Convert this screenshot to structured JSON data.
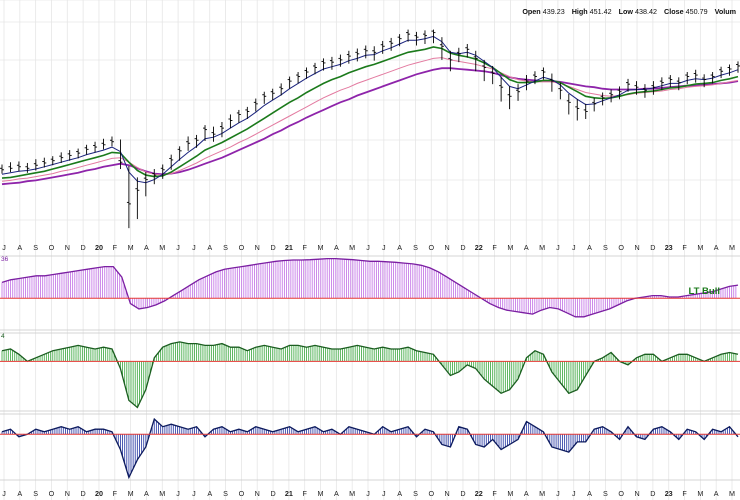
{
  "ohlc": {
    "open_label": "Open",
    "open_value": "439.23",
    "high_label": "High",
    "high_value": "451.42",
    "low_label": "Low",
    "low_value": "438.42",
    "close_label": "Close",
    "close_value": "450.79",
    "volume_label": "Volum"
  },
  "colors": {
    "price": "#000000",
    "ma_fast": "#1a237e",
    "ma_green": "#1b7a1b",
    "ma_pink": "#e37aa0",
    "ma_purple": "#8e24aa",
    "hist_purple_fill": "#c77de8",
    "hist_purple_line": "#7b1fa2",
    "hist_green_fill": "#4caf50",
    "hist_green_line": "#1b5e20",
    "hist_blue_fill": "#3949ab",
    "hist_blue_line": "#0d1b5e",
    "zero_line": "#e53935",
    "grid": "#e6e6e6",
    "label_green": "#1b7a1b"
  },
  "chart_data": {
    "type": "line",
    "x_tick_labels": [
      "J",
      "A",
      "S",
      "O",
      "N",
      "D",
      "20",
      "F",
      "M",
      "A",
      "M",
      "J",
      "J",
      "A",
      "S",
      "O",
      "N",
      "D",
      "21",
      "F",
      "M",
      "A",
      "M",
      "J",
      "J",
      "A",
      "S",
      "O",
      "N",
      "D",
      "22",
      "F",
      "M",
      "A",
      "M",
      "J",
      "J",
      "A",
      "S",
      "O",
      "N",
      "D",
      "23",
      "F",
      "M",
      "A",
      "M"
    ],
    "bold_tick_labels": [
      "20",
      "21",
      "22",
      "23"
    ],
    "price_series": [
      295,
      297,
      299,
      297,
      301,
      304,
      307,
      311,
      314,
      317,
      322,
      325,
      328,
      332,
      305,
      250,
      268,
      282,
      288,
      295,
      308,
      320,
      330,
      334,
      348,
      342,
      350,
      360,
      368,
      372,
      382,
      392,
      396,
      402,
      412,
      418,
      424,
      430,
      436,
      437,
      440,
      445,
      448,
      452,
      450,
      458,
      462,
      468,
      474,
      470,
      472,
      476,
      458,
      440,
      448,
      454,
      442,
      430,
      422,
      404,
      392,
      398,
      412,
      418,
      424,
      412,
      400,
      384,
      376,
      372,
      382,
      390,
      394,
      398,
      408,
      404,
      400,
      404,
      410,
      414,
      410,
      418,
      420,
      414,
      418,
      425,
      428,
      432
    ],
    "ma_series": [
      {
        "name": "",
        "role": "fast",
        "values": [
          289,
          291,
          293,
          294,
          296,
          299,
          302,
          305,
          308,
          311,
          315,
          318,
          321,
          325,
          319,
          292,
          280,
          278,
          282,
          289,
          299,
          309,
          318,
          326,
          336,
          338,
          343,
          350,
          357,
          363,
          371,
          380,
          387,
          394,
          402,
          409,
          416,
          422,
          428,
          431,
          434,
          439,
          442,
          446,
          447,
          452,
          456,
          461,
          466,
          466,
          468,
          471,
          464,
          450,
          448,
          450,
          446,
          438,
          430,
          417,
          405,
          402,
          407,
          412,
          417,
          414,
          407,
          396,
          388,
          381,
          382,
          386,
          390,
          394,
          400,
          401,
          401,
          403,
          406,
          409,
          409,
          413,
          415,
          414,
          416,
          420,
          423,
          427
        ]
      },
      {
        "name": "",
        "role": "green",
        "values": [
          284,
          285,
          287,
          289,
          291,
          293,
          296,
          299,
          302,
          305,
          308,
          311,
          314,
          318,
          317,
          305,
          294,
          288,
          286,
          287,
          292,
          299,
          306,
          313,
          321,
          326,
          331,
          337,
          343,
          349,
          356,
          363,
          370,
          377,
          384,
          390,
          397,
          403,
          409,
          414,
          418,
          423,
          427,
          431,
          434,
          438,
          442,
          446,
          450,
          452,
          454,
          457,
          455,
          449,
          446,
          444,
          441,
          436,
          430,
          422,
          414,
          410,
          410,
          411,
          413,
          413,
          410,
          404,
          398,
          392,
          390,
          389,
          390,
          392,
          395,
          397,
          398,
          399,
          401,
          403,
          404,
          406,
          408,
          409,
          410,
          413,
          415,
          418
        ]
      },
      {
        "name": "",
        "role": "pink",
        "values": [
          280,
          281,
          283,
          284,
          286,
          288,
          290,
          293,
          295,
          298,
          301,
          304,
          307,
          310,
          311,
          305,
          298,
          292,
          289,
          288,
          290,
          294,
          299,
          304,
          310,
          315,
          320,
          325,
          331,
          336,
          342,
          348,
          354,
          360,
          366,
          372,
          378,
          384,
          390,
          395,
          400,
          404,
          409,
          413,
          417,
          421,
          425,
          429,
          433,
          436,
          439,
          442,
          443,
          440,
          438,
          436,
          434,
          431,
          428,
          423,
          418,
          414,
          412,
          411,
          411,
          411,
          409,
          405,
          401,
          397,
          395,
          393,
          392,
          393,
          394,
          396,
          397,
          398,
          399,
          401,
          402,
          404,
          405,
          406,
          407,
          409,
          411,
          413
        ]
      },
      {
        "name": "",
        "role": "purple",
        "values": [
          276,
          277,
          278,
          280,
          281,
          283,
          285,
          287,
          289,
          291,
          294,
          296,
          299,
          301,
          303,
          301,
          297,
          293,
          290,
          289,
          290,
          292,
          295,
          299,
          303,
          307,
          311,
          316,
          321,
          326,
          331,
          336,
          342,
          347,
          353,
          358,
          364,
          369,
          374,
          379,
          384,
          388,
          393,
          397,
          401,
          405,
          409,
          413,
          417,
          421,
          424,
          427,
          429,
          429,
          428,
          427,
          426,
          425,
          423,
          420,
          417,
          415,
          414,
          413,
          412,
          412,
          411,
          409,
          407,
          405,
          404,
          402,
          401,
          401,
          401,
          401,
          402,
          402,
          403,
          404,
          405,
          406,
          406,
          407,
          408,
          409,
          410,
          412
        ]
      }
    ],
    "ohlc_ticks": [
      {
        "h": 302,
        "l": 290
      },
      {
        "h": 305,
        "l": 292
      },
      {
        "h": 306,
        "l": 293
      },
      {
        "h": 304,
        "l": 291
      },
      {
        "h": 309,
        "l": 294
      },
      {
        "h": 311,
        "l": 298
      },
      {
        "h": 313,
        "l": 301
      },
      {
        "h": 318,
        "l": 304
      },
      {
        "h": 321,
        "l": 307
      },
      {
        "h": 323,
        "l": 310
      },
      {
        "h": 328,
        "l": 315
      },
      {
        "h": 332,
        "l": 318
      },
      {
        "h": 336,
        "l": 322
      },
      {
        "h": 339,
        "l": 326
      },
      {
        "h": 335,
        "l": 296
      },
      {
        "h": 300,
        "l": 218
      },
      {
        "h": 285,
        "l": 230
      },
      {
        "h": 292,
        "l": 260
      },
      {
        "h": 296,
        "l": 276
      },
      {
        "h": 302,
        "l": 283
      },
      {
        "h": 315,
        "l": 295
      },
      {
        "h": 326,
        "l": 307
      },
      {
        "h": 339,
        "l": 320
      },
      {
        "h": 341,
        "l": 324
      },
      {
        "h": 354,
        "l": 333
      },
      {
        "h": 352,
        "l": 332
      },
      {
        "h": 358,
        "l": 338
      },
      {
        "h": 368,
        "l": 350
      },
      {
        "h": 374,
        "l": 357
      },
      {
        "h": 378,
        "l": 362
      },
      {
        "h": 389,
        "l": 372
      },
      {
        "h": 398,
        "l": 382
      },
      {
        "h": 402,
        "l": 387
      },
      {
        "h": 409,
        "l": 393
      },
      {
        "h": 418,
        "l": 402
      },
      {
        "h": 424,
        "l": 409
      },
      {
        "h": 430,
        "l": 415
      },
      {
        "h": 436,
        "l": 421
      },
      {
        "h": 442,
        "l": 426
      },
      {
        "h": 444,
        "l": 427
      },
      {
        "h": 447,
        "l": 431
      },
      {
        "h": 452,
        "l": 435
      },
      {
        "h": 455,
        "l": 438
      },
      {
        "h": 459,
        "l": 442
      },
      {
        "h": 458,
        "l": 439
      },
      {
        "h": 465,
        "l": 448
      },
      {
        "h": 469,
        "l": 452
      },
      {
        "h": 474,
        "l": 458
      },
      {
        "h": 480,
        "l": 464
      },
      {
        "h": 477,
        "l": 459
      },
      {
        "h": 479,
        "l": 461
      },
      {
        "h": 480,
        "l": 462
      },
      {
        "h": 470,
        "l": 440
      },
      {
        "h": 452,
        "l": 425
      },
      {
        "h": 456,
        "l": 437
      },
      {
        "h": 461,
        "l": 443
      },
      {
        "h": 452,
        "l": 425
      },
      {
        "h": 440,
        "l": 412
      },
      {
        "h": 432,
        "l": 408
      },
      {
        "h": 418,
        "l": 385
      },
      {
        "h": 405,
        "l": 375
      },
      {
        "h": 408,
        "l": 386
      },
      {
        "h": 420,
        "l": 400
      },
      {
        "h": 425,
        "l": 408
      },
      {
        "h": 430,
        "l": 414
      },
      {
        "h": 422,
        "l": 398
      },
      {
        "h": 410,
        "l": 388
      },
      {
        "h": 395,
        "l": 368
      },
      {
        "h": 388,
        "l": 360
      },
      {
        "h": 382,
        "l": 362
      },
      {
        "h": 390,
        "l": 372
      },
      {
        "h": 397,
        "l": 380
      },
      {
        "h": 401,
        "l": 384
      },
      {
        "h": 405,
        "l": 388
      },
      {
        "h": 415,
        "l": 398
      },
      {
        "h": 412,
        "l": 394
      },
      {
        "h": 408,
        "l": 390
      },
      {
        "h": 412,
        "l": 394
      },
      {
        "h": 417,
        "l": 400
      },
      {
        "h": 420,
        "l": 404
      },
      {
        "h": 417,
        "l": 400
      },
      {
        "h": 424,
        "l": 408
      },
      {
        "h": 427,
        "l": 410
      },
      {
        "h": 421,
        "l": 404
      },
      {
        "h": 424,
        "l": 409
      },
      {
        "h": 431,
        "l": 416
      },
      {
        "h": 434,
        "l": 419
      },
      {
        "h": 438,
        "l": 423
      }
    ],
    "price_ylim": [
      205,
      490
    ],
    "indicators": [
      {
        "name": "",
        "top_label": "36",
        "annotation": "LT Bull",
        "ylim": [
          -12,
          16
        ],
        "values": [
          6,
          7,
          7.5,
          8,
          8.5,
          8.5,
          9,
          9.5,
          10,
          10.5,
          11,
          11.5,
          12,
          12,
          8,
          -2,
          -4,
          -3.5,
          -2.5,
          -1,
          1,
          3,
          5,
          7,
          8.5,
          10,
          11,
          11.5,
          12,
          12.5,
          13,
          13.5,
          14,
          14.3,
          14.5,
          14.5,
          14.6,
          14.8,
          15,
          15,
          14.8,
          14.6,
          14.3,
          14,
          14,
          13.8,
          13.6,
          13.3,
          13,
          12.5,
          11.5,
          10,
          8,
          6,
          4,
          2,
          0,
          -2,
          -3.5,
          -4.5,
          -5,
          -5.5,
          -6,
          -4.5,
          -3.5,
          -4,
          -5.5,
          -7,
          -7,
          -6,
          -5,
          -4,
          -2.5,
          -1,
          0,
          0.5,
          1,
          1,
          0.5,
          0.5,
          1,
          1.5,
          2,
          2.5,
          3.5,
          4.5,
          5
        ]
      },
      {
        "name": "",
        "top_label": "4",
        "annotation": "",
        "ylim": [
          -14,
          8
        ],
        "values": [
          3,
          3.5,
          2,
          0,
          1,
          2,
          3,
          3.5,
          4,
          4.5,
          4,
          3.5,
          4,
          3.5,
          -2,
          -11,
          -13,
          -8,
          1,
          4,
          5,
          5.5,
          5,
          5,
          4.5,
          4.5,
          5,
          4,
          4,
          3,
          4,
          4.5,
          4,
          3.5,
          4.5,
          4.5,
          4,
          4.5,
          4,
          3.5,
          3.5,
          4,
          4.5,
          4,
          3.5,
          4,
          3.5,
          3.5,
          4,
          3,
          2.5,
          2,
          -1,
          -4,
          -3,
          -1,
          -2,
          -5,
          -7,
          -9,
          -8,
          -5,
          1,
          3,
          2,
          -3,
          -6,
          -9,
          -8,
          -4,
          0,
          1,
          2.5,
          0,
          -1,
          1,
          2,
          2,
          0,
          1,
          2,
          2,
          1,
          0,
          1,
          2,
          2.5,
          2
        ]
      },
      {
        "name": "",
        "top_label": "",
        "annotation": "",
        "ylim": [
          -18,
          8
        ],
        "values": [
          1,
          2,
          -1,
          0,
          2,
          1,
          2,
          3,
          2,
          3,
          1,
          2,
          2,
          1,
          -6,
          -17,
          -10,
          -5,
          6,
          3,
          4,
          3,
          2,
          3,
          -1,
          2,
          3,
          1,
          2,
          1,
          3,
          2,
          1,
          2,
          3,
          1,
          2,
          3,
          1,
          2,
          0,
          3,
          2,
          1,
          0,
          3,
          1,
          2,
          3,
          -1,
          2,
          1,
          -4,
          -5,
          3,
          2,
          -4,
          -5,
          -2,
          -6,
          -4,
          -2,
          5,
          3,
          1,
          -5,
          -6,
          -7,
          -3,
          -3,
          2,
          3,
          1,
          -2,
          3,
          -1,
          -2,
          2,
          3,
          1,
          -2,
          2,
          1,
          -2,
          2,
          1,
          3,
          -1
        ]
      }
    ],
    "grid": true,
    "legend": "none"
  }
}
